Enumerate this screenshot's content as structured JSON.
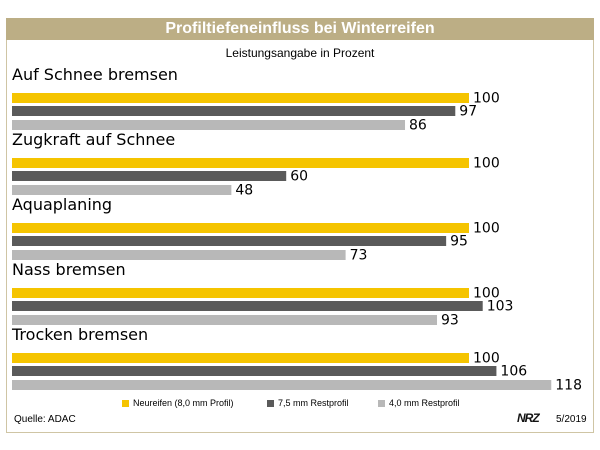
{
  "title": "Profiltiefeneinfluss bei Winterreifen",
  "subtitle": "Leistungsangabe in Prozent",
  "source": "Quelle: ADAC",
  "logo": "NRZ",
  "date": "5/2019",
  "colors": {
    "neu": "#f5c400",
    "mid": "#5a5a5a",
    "rest": "#b8b8b8",
    "title_bar": "#bcae85"
  },
  "chart_data": {
    "type": "bar",
    "orientation": "horizontal",
    "categories": [
      "Auf Schnee bremsen",
      "Zugkraft auf Schnee",
      "Aquaplaning",
      "Nass bremsen",
      "Trocken bremsen"
    ],
    "series": [
      {
        "name": "Neureifen (8,0 mm Profil)",
        "values": [
          100,
          100,
          100,
          100,
          100
        ]
      },
      {
        "name": "7,5 mm Restprofil",
        "values": [
          97,
          60,
          95,
          103,
          106
        ]
      },
      {
        "name": "4,0 mm Restprofil",
        "values": [
          86,
          48,
          73,
          93,
          118
        ]
      }
    ],
    "title": "Profiltiefeneinfluss bei Winterreifen",
    "subtitle": "Leistungsangabe in Prozent",
    "legend_position": "bottom",
    "grid": false
  }
}
